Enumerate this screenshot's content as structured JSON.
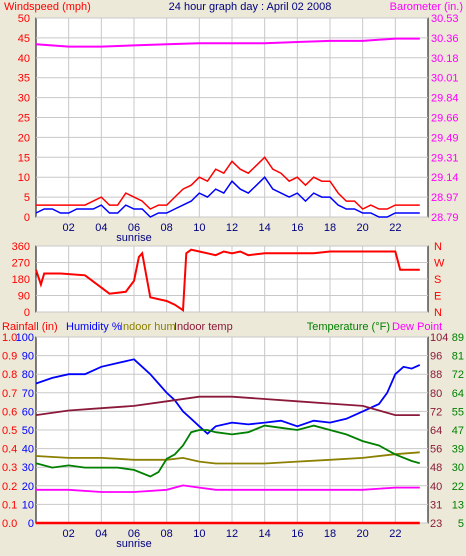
{
  "chart_data": [
    {
      "type": "line",
      "title": "24 hour graph day : April 02 2008",
      "left_axis_label": "Windspeed (mph)",
      "right_axis_label": "Barometer (in.)",
      "x_ticks": [
        "02",
        "04",
        "06",
        "08",
        "10",
        "12",
        "14",
        "16",
        "18",
        "20",
        "22"
      ],
      "sunrise_label": "sunrise",
      "xlim": [
        0,
        24
      ],
      "ylim_left": [
        0,
        50
      ],
      "ylim_right": [
        28.79,
        30.53
      ],
      "left_ticks": [
        "50",
        "45",
        "40",
        "35",
        "30",
        "25",
        "20",
        "15",
        "10",
        "5",
        "0"
      ],
      "right_ticks": [
        "30.53",
        "30.36",
        "30.18",
        "30.01",
        "29.84",
        "29.66",
        "29.49",
        "29.31",
        "29.14",
        "28.97",
        "28.79"
      ],
      "grid": true,
      "series": [
        {
          "name": "",
          "axis": "left",
          "color": "#ff0000",
          "note": "gust",
          "x": [
            0,
            0.5,
            1,
            1.5,
            2,
            2.5,
            3,
            3.5,
            4,
            4.5,
            5,
            5.5,
            6,
            6.5,
            7,
            7.5,
            8,
            8.5,
            9,
            9.5,
            10,
            10.5,
            11,
            11.5,
            12,
            12.5,
            13,
            13.5,
            14,
            14.5,
            15,
            15.5,
            16,
            16.5,
            17,
            17.5,
            18,
            18.5,
            19,
            19.5,
            20,
            20.5,
            21,
            21.5,
            22,
            22.5,
            23,
            23.5
          ],
          "y": [
            3,
            3,
            3,
            3,
            3,
            3,
            3,
            4,
            5,
            3,
            3,
            6,
            5,
            4,
            2,
            3,
            3,
            5,
            7,
            8,
            10,
            9,
            12,
            11,
            14,
            12,
            11,
            13,
            15,
            12,
            11,
            9,
            10,
            8,
            10,
            9,
            9,
            6,
            4,
            4,
            2,
            3,
            2,
            2,
            3,
            3,
            3,
            3
          ]
        },
        {
          "name": "",
          "axis": "left",
          "color": "#0000ff",
          "note": "average",
          "x": [
            0,
            0.5,
            1,
            1.5,
            2,
            2.5,
            3,
            3.5,
            4,
            4.5,
            5,
            5.5,
            6,
            6.5,
            7,
            7.5,
            8,
            8.5,
            9,
            9.5,
            10,
            10.5,
            11,
            11.5,
            12,
            12.5,
            13,
            13.5,
            14,
            14.5,
            15,
            15.5,
            16,
            16.5,
            17,
            17.5,
            18,
            18.5,
            19,
            19.5,
            20,
            20.5,
            21,
            21.5,
            22,
            22.5,
            23,
            23.5
          ],
          "y": [
            1,
            2,
            2,
            1,
            1,
            2,
            2,
            2,
            3,
            1,
            1,
            3,
            2,
            2,
            0,
            1,
            1,
            2,
            3,
            4,
            6,
            5,
            7,
            6,
            9,
            7,
            6,
            8,
            10,
            7,
            6,
            5,
            6,
            4,
            6,
            5,
            5,
            3,
            2,
            2,
            1,
            1,
            0,
            0,
            1,
            1,
            1,
            1
          ]
        },
        {
          "name": "",
          "axis": "right",
          "color": "#ff00ff",
          "note": "barometer",
          "x": [
            0,
            2,
            4,
            6,
            8,
            10,
            12,
            14,
            16,
            18,
            20,
            22,
            23.5
          ],
          "y": [
            30.3,
            30.28,
            30.28,
            30.29,
            30.3,
            30.31,
            30.31,
            30.31,
            30.32,
            30.33,
            30.33,
            30.35,
            30.35
          ]
        }
      ]
    },
    {
      "type": "line",
      "left_ticks": [
        "360",
        "270",
        "180",
        "90",
        "0"
      ],
      "right_ticks": [
        "N",
        "W",
        "S",
        "E",
        "N"
      ],
      "ylim": [
        0,
        360
      ],
      "xlim": [
        0,
        24
      ],
      "series": [
        {
          "name": "",
          "color": "#ff0000",
          "note": "wind direction",
          "x": [
            0,
            0.3,
            0.5,
            1.5,
            3,
            4.5,
            5.5,
            6,
            6.3,
            6.5,
            7,
            8,
            8.5,
            9,
            9.2,
            9.5,
            10,
            10.5,
            11,
            11.5,
            12,
            12.5,
            13,
            14,
            15,
            16,
            17,
            18,
            19,
            20,
            21,
            22,
            22.3,
            23.5
          ],
          "y": [
            230,
            150,
            210,
            210,
            200,
            100,
            110,
            170,
            300,
            320,
            80,
            60,
            40,
            10,
            320,
            340,
            330,
            320,
            310,
            330,
            320,
            330,
            310,
            320,
            320,
            320,
            320,
            330,
            330,
            330,
            330,
            330,
            230,
            230
          ]
        }
      ]
    },
    {
      "type": "line",
      "labels": {
        "rainfall": "Rainfall (in)",
        "humidity": "Humidity %",
        "indoor_hum": "Indoor hum",
        "indoor_temp": "Indoor temp",
        "temperature": "Temperature (°F)",
        "dew_point": "Dew Point"
      },
      "xlim": [
        0,
        24
      ],
      "rain_ticks": [
        "1.0",
        "0.9",
        "0.8",
        "0.7",
        "0.6",
        "0.5",
        "0.4",
        "0.3",
        "0.2",
        "0.1",
        "0.0"
      ],
      "humidity_ticks": [
        "100",
        "90",
        "80",
        "70",
        "60",
        "50",
        "40",
        "30",
        "20",
        "10",
        "0"
      ],
      "indoor_temp_ticks": [
        "104",
        "96",
        "88",
        "80",
        "72",
        "64",
        "56",
        "48",
        "40",
        "31",
        "23"
      ],
      "temperature_ticks": [
        "89",
        "81",
        "72",
        "64",
        "55",
        "47",
        "39",
        "30",
        "22",
        "13",
        "5"
      ],
      "series": [
        {
          "name": "Humidity %",
          "color": "#0000ff",
          "axis": "humidity",
          "x": [
            0,
            1,
            2,
            3,
            4,
            5,
            6,
            6.5,
            7,
            7.5,
            8,
            8.5,
            9,
            9.5,
            10,
            10.5,
            11,
            12,
            13,
            14,
            15,
            16,
            17,
            18,
            19,
            20,
            21,
            21.5,
            22,
            22.5,
            23,
            23.5
          ],
          "y": [
            75,
            78,
            80,
            80,
            84,
            86,
            88,
            84,
            80,
            75,
            70,
            66,
            60,
            56,
            52,
            48,
            52,
            54,
            53,
            54,
            55,
            52,
            55,
            54,
            56,
            60,
            64,
            70,
            80,
            84,
            83,
            85
          ]
        },
        {
          "name": "Indoor temp",
          "color": "#8b1a3a",
          "axis": "indoor_temp",
          "x": [
            0,
            2,
            4,
            6,
            8,
            10,
            12,
            14,
            16,
            18,
            20,
            22,
            23.5
          ],
          "y": [
            70,
            72,
            73,
            74,
            76,
            78,
            78,
            77,
            76,
            75,
            74,
            70,
            70
          ]
        },
        {
          "name": "Indoor hum",
          "color": "#8b8000",
          "axis": "humidity",
          "x": [
            0,
            2,
            4,
            6,
            8,
            9,
            10,
            11,
            12,
            14,
            16,
            18,
            20,
            22,
            23.5
          ],
          "y": [
            36,
            35,
            35,
            34,
            34,
            35,
            33,
            32,
            32,
            32,
            33,
            34,
            35,
            37,
            38
          ]
        },
        {
          "name": "Temperature (°F)",
          "color": "#008000",
          "axis": "temperature",
          "x": [
            0,
            1,
            2,
            3,
            4,
            5,
            6,
            7,
            7.5,
            8,
            8.5,
            9,
            9.5,
            10,
            10.5,
            11,
            12,
            13,
            14,
            15,
            16,
            17,
            18,
            19,
            20,
            21,
            22,
            23,
            23.5
          ],
          "y": [
            32,
            30,
            31,
            30,
            30,
            30,
            29,
            26,
            28,
            34,
            36,
            40,
            46,
            47,
            47,
            46,
            45,
            46,
            49,
            48,
            47,
            49,
            47,
            45,
            42,
            40,
            36,
            33,
            32
          ]
        },
        {
          "name": "Dew Point",
          "color": "#ff00ff",
          "axis": "temperature",
          "x": [
            0,
            2,
            4,
            6,
            8,
            9,
            10,
            11,
            12,
            14,
            16,
            18,
            20,
            22,
            23.5
          ],
          "y": [
            20,
            20,
            19,
            19,
            20,
            22,
            21,
            20,
            20,
            20,
            20,
            20,
            20,
            21,
            21
          ]
        },
        {
          "name": "Rainfall (in)",
          "color": "#ff0000",
          "axis": "rain",
          "x": [
            0,
            23.5
          ],
          "y": [
            0,
            0
          ]
        }
      ]
    }
  ]
}
